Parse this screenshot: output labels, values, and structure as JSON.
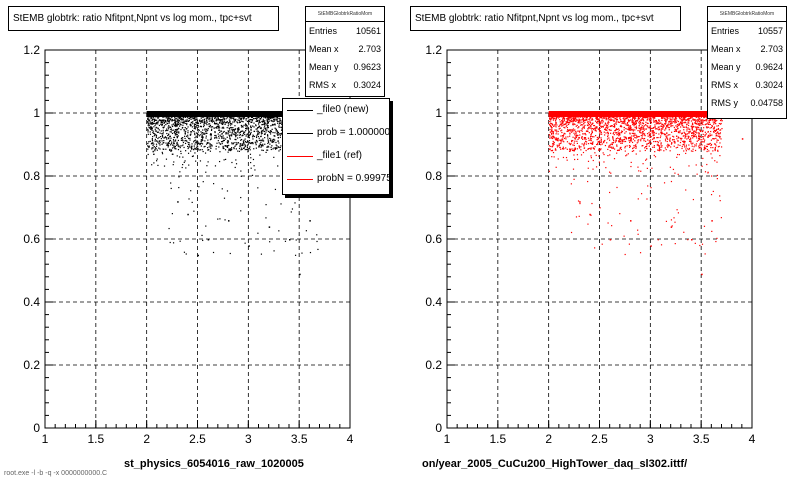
{
  "chart_data": [
    {
      "type": "scatter",
      "title": "StEMB globtrk: ratio Nfitpnt,Npnt vs log mom., tpc+svt",
      "xlabel": "st_physics_6054016_raw_1020005",
      "xlim": [
        1,
        4
      ],
      "ylim": [
        0,
        1.2
      ],
      "x_ticks": [
        "1",
        "1.5",
        "2",
        "2.5",
        "3",
        "3.5",
        "4"
      ],
      "y_ticks": [
        "0",
        "0.2",
        "0.4",
        "0.6",
        "0.8",
        "1",
        "1.2"
      ],
      "grid": true,
      "marker_color": "#000000",
      "stats": {
        "header": "StEMBGlobtrkRatioMom",
        "rows": [
          {
            "key": "Entries",
            "value": "10561"
          },
          {
            "key": "Mean x",
            "value": "2.703"
          },
          {
            "key": "Mean y",
            "value": "0.9623"
          },
          {
            "key": "RMS x",
            "value": "0.3024"
          }
        ]
      },
      "legend": [
        {
          "label": "_file0 (new)",
          "color": "#000000"
        },
        {
          "label": "prob = 1.000000",
          "color": "#000000"
        },
        {
          "label": "_file1 (ref)",
          "color": "#ff0000"
        },
        {
          "label": "probN = 0.999753",
          "color": "#ff0000"
        }
      ],
      "points": {
        "band_y": [
          0.96,
          1.0
        ],
        "band_x": [
          2.0,
          3.7
        ],
        "core_points": [
          [
            2.0,
            1.0
          ],
          [
            2.1,
            0.99
          ],
          [
            2.3,
            0.98
          ],
          [
            2.5,
            0.97
          ],
          [
            2.7,
            0.96
          ],
          [
            2.9,
            0.95
          ],
          [
            3.1,
            0.96
          ],
          [
            3.3,
            0.97
          ],
          [
            3.5,
            0.98
          ],
          [
            3.7,
            0.99
          ]
        ],
        "outliers": [
          [
            2.3,
            0.72
          ],
          [
            2.4,
            0.68
          ],
          [
            2.6,
            0.6
          ],
          [
            2.8,
            0.66
          ],
          [
            3.0,
            0.58
          ],
          [
            3.2,
            0.64
          ],
          [
            3.4,
            0.6
          ],
          [
            3.6,
            0.66
          ],
          [
            2.5,
            0.55
          ],
          [
            3.5,
            0.49
          ]
        ]
      }
    },
    {
      "type": "scatter",
      "title": "StEMB globtrk: ratio Nfitpnt,Npnt vs log mom., tpc+svt",
      "xlabel": "on/year_2005_CuCu200_HighTower_daq_sl302.ittf/",
      "xlim": [
        1,
        4
      ],
      "ylim": [
        0,
        1.2
      ],
      "x_ticks": [
        "1",
        "1.5",
        "2",
        "2.5",
        "3",
        "3.5",
        "4"
      ],
      "y_ticks": [
        "0",
        "0.2",
        "0.4",
        "0.6",
        "0.8",
        "1",
        "1.2"
      ],
      "grid": true,
      "marker_color": "#ff0000",
      "stats": {
        "header": "StEMBGlobtrkRatioMom",
        "rows": [
          {
            "key": "Entries",
            "value": "10557"
          },
          {
            "key": "Mean x",
            "value": "2.703"
          },
          {
            "key": "Mean y",
            "value": "0.9624"
          },
          {
            "key": "RMS x",
            "value": "0.3024"
          },
          {
            "key": "RMS y",
            "value": "0.04758"
          }
        ]
      },
      "points": {
        "band_y": [
          0.96,
          1.0
        ],
        "band_x": [
          2.0,
          3.7
        ],
        "core_points": [
          [
            2.0,
            1.0
          ],
          [
            2.1,
            0.99
          ],
          [
            2.3,
            0.98
          ],
          [
            2.5,
            0.97
          ],
          [
            2.7,
            0.96
          ],
          [
            2.9,
            0.95
          ],
          [
            3.1,
            0.96
          ],
          [
            3.3,
            0.97
          ],
          [
            3.5,
            0.98
          ],
          [
            3.7,
            0.99
          ]
        ],
        "outliers": [
          [
            2.3,
            0.72
          ],
          [
            2.4,
            0.68
          ],
          [
            2.6,
            0.6
          ],
          [
            2.8,
            0.66
          ],
          [
            3.0,
            0.58
          ],
          [
            3.2,
            0.64
          ],
          [
            3.4,
            0.6
          ],
          [
            3.6,
            0.66
          ],
          [
            3.9,
            0.92
          ],
          [
            3.5,
            0.49
          ]
        ]
      }
    }
  ],
  "footer_text": "root.exe -l -b -q -x 0000000000.C"
}
